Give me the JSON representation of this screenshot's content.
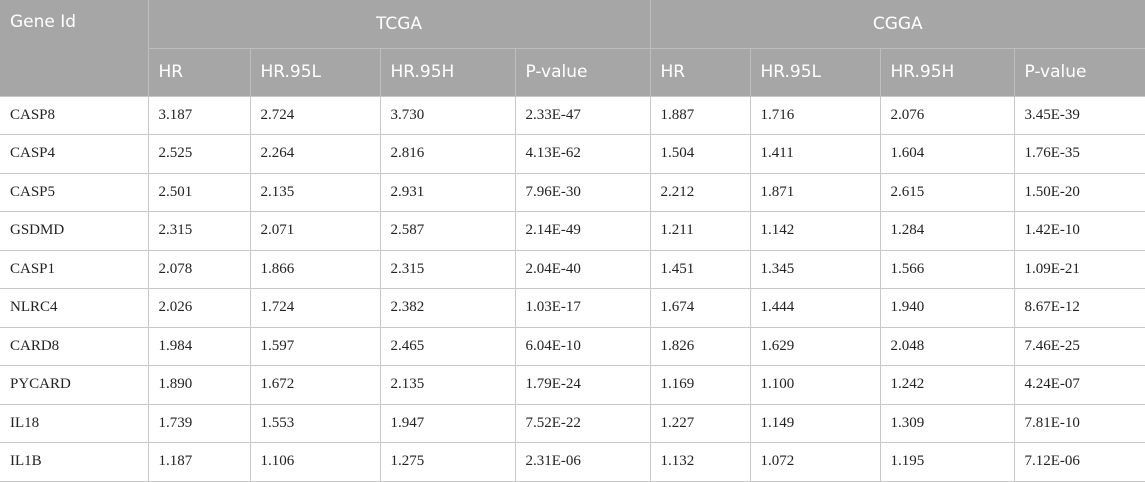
{
  "table": {
    "header": {
      "gene_id": "Gene Id",
      "groups": [
        "TCGA",
        "CGGA"
      ],
      "columns": [
        "HR",
        "HR.95L",
        "HR.95H",
        "P-value",
        "HR",
        "HR.95L",
        "HR.95H",
        "P-value"
      ]
    },
    "rows": [
      [
        "CASP8",
        "3.187",
        "2.724",
        "3.730",
        "2.33E-47",
        "1.887",
        "1.716",
        "2.076",
        "3.45E-39"
      ],
      [
        "CASP4",
        "2.525",
        "2.264",
        "2.816",
        "4.13E-62",
        "1.504",
        "1.411",
        "1.604",
        "1.76E-35"
      ],
      [
        "CASP5",
        "2.501",
        "2.135",
        "2.931",
        "7.96E-30",
        "2.212",
        "1.871",
        "2.615",
        "1.50E-20"
      ],
      [
        "GSDMD",
        "2.315",
        "2.071",
        "2.587",
        "2.14E-49",
        "1.211",
        "1.142",
        "1.284",
        "1.42E-10"
      ],
      [
        "CASP1",
        "2.078",
        "1.866",
        "2.315",
        "2.04E-40",
        "1.451",
        "1.345",
        "1.566",
        "1.09E-21"
      ],
      [
        "NLRC4",
        "2.026",
        "1.724",
        "2.382",
        "1.03E-17",
        "1.674",
        "1.444",
        "1.940",
        "8.67E-12"
      ],
      [
        "CARD8",
        "1.984",
        "1.597",
        "2.465",
        "6.04E-10",
        "1.826",
        "1.629",
        "2.048",
        "7.46E-25"
      ],
      [
        "PYCARD",
        "1.890",
        "1.672",
        "2.135",
        "1.79E-24",
        "1.169",
        "1.100",
        "1.242",
        "4.24E-07"
      ],
      [
        "IL18",
        "1.739",
        "1.553",
        "1.947",
        "7.52E-22",
        "1.227",
        "1.149",
        "1.309",
        "7.81E-10"
      ],
      [
        "IL1B",
        "1.187",
        "1.106",
        "1.275",
        "2.31E-06",
        "1.132",
        "1.072",
        "1.195",
        "7.12E-06"
      ]
    ]
  }
}
